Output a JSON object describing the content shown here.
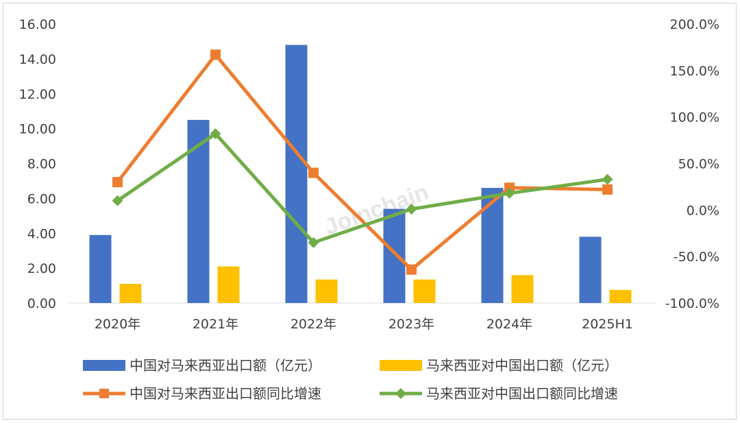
{
  "chart_data": {
    "type": "bar",
    "categories": [
      "2020年",
      "2021年",
      "2022年",
      "2023年",
      "2024年",
      "2025H1"
    ],
    "y_left": {
      "ticks": [
        "16.00",
        "14.00",
        "12.00",
        "10.00",
        "8.00",
        "6.00",
        "4.00",
        "2.00",
        "0.00"
      ],
      "range": [
        0,
        16
      ]
    },
    "y_right": {
      "ticks": [
        "200.0%",
        "150.0%",
        "100.0%",
        "50.0%",
        "0.0%",
        "-50.0%",
        "-100.0%"
      ],
      "range": [
        -100,
        200
      ]
    },
    "series": [
      {
        "name": "中国对马来西亚出口额（亿元）",
        "type": "bar",
        "axis": "left",
        "color": "#4472C4",
        "values": [
          3.9,
          10.5,
          14.8,
          5.4,
          6.6,
          3.8
        ]
      },
      {
        "name": "马来西亚对中国出口额（亿元）",
        "type": "bar",
        "axis": "left",
        "color": "#FFC000",
        "values": [
          1.1,
          2.1,
          1.35,
          1.35,
          1.6,
          0.75
        ]
      },
      {
        "name": "中国对马来西亚出口额同比增速",
        "type": "line",
        "axis": "right",
        "color": "#ED7D31",
        "marker": "square",
        "values": [
          30,
          167,
          40,
          -64,
          24,
          22
        ]
      },
      {
        "name": "马来西亚对中国出口额同比增速",
        "type": "line",
        "axis": "right",
        "color": "#70AD47",
        "marker": "diamond",
        "values": [
          10,
          82,
          -35,
          1,
          18,
          33
        ]
      }
    ],
    "grid": false,
    "legend": "bottom"
  },
  "watermark": "Joinchain"
}
